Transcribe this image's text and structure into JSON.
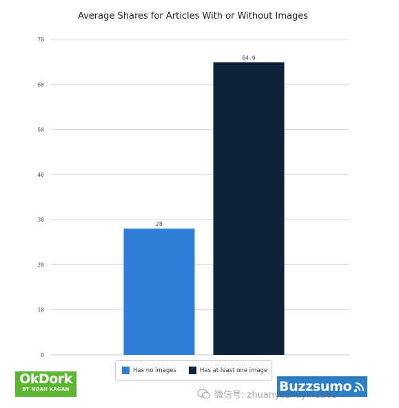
{
  "chart_data": {
    "type": "bar",
    "title": "Average Shares for Articles With or Without Images",
    "xlabel": "",
    "ylabel": "",
    "ylim": [
      0,
      70
    ],
    "yticks": [
      0,
      10,
      20,
      30,
      40,
      50,
      60,
      70
    ],
    "grid": true,
    "legend_position": "bottom",
    "series": [
      {
        "name": "Has no images",
        "value": 28,
        "label": "28",
        "color": "#2f7ed8"
      },
      {
        "name": "Has at least one image",
        "value": 64.9,
        "label": "64.9",
        "color": "#0d233a"
      }
    ]
  },
  "branding": {
    "okdork_title": "OkDork",
    "okdork_subtitle": "BY NOAH KAGAN",
    "buzzsumo": "Buzzsumo"
  },
  "watermark": {
    "text": "微信号: zhuanyezhuyin1982"
  }
}
